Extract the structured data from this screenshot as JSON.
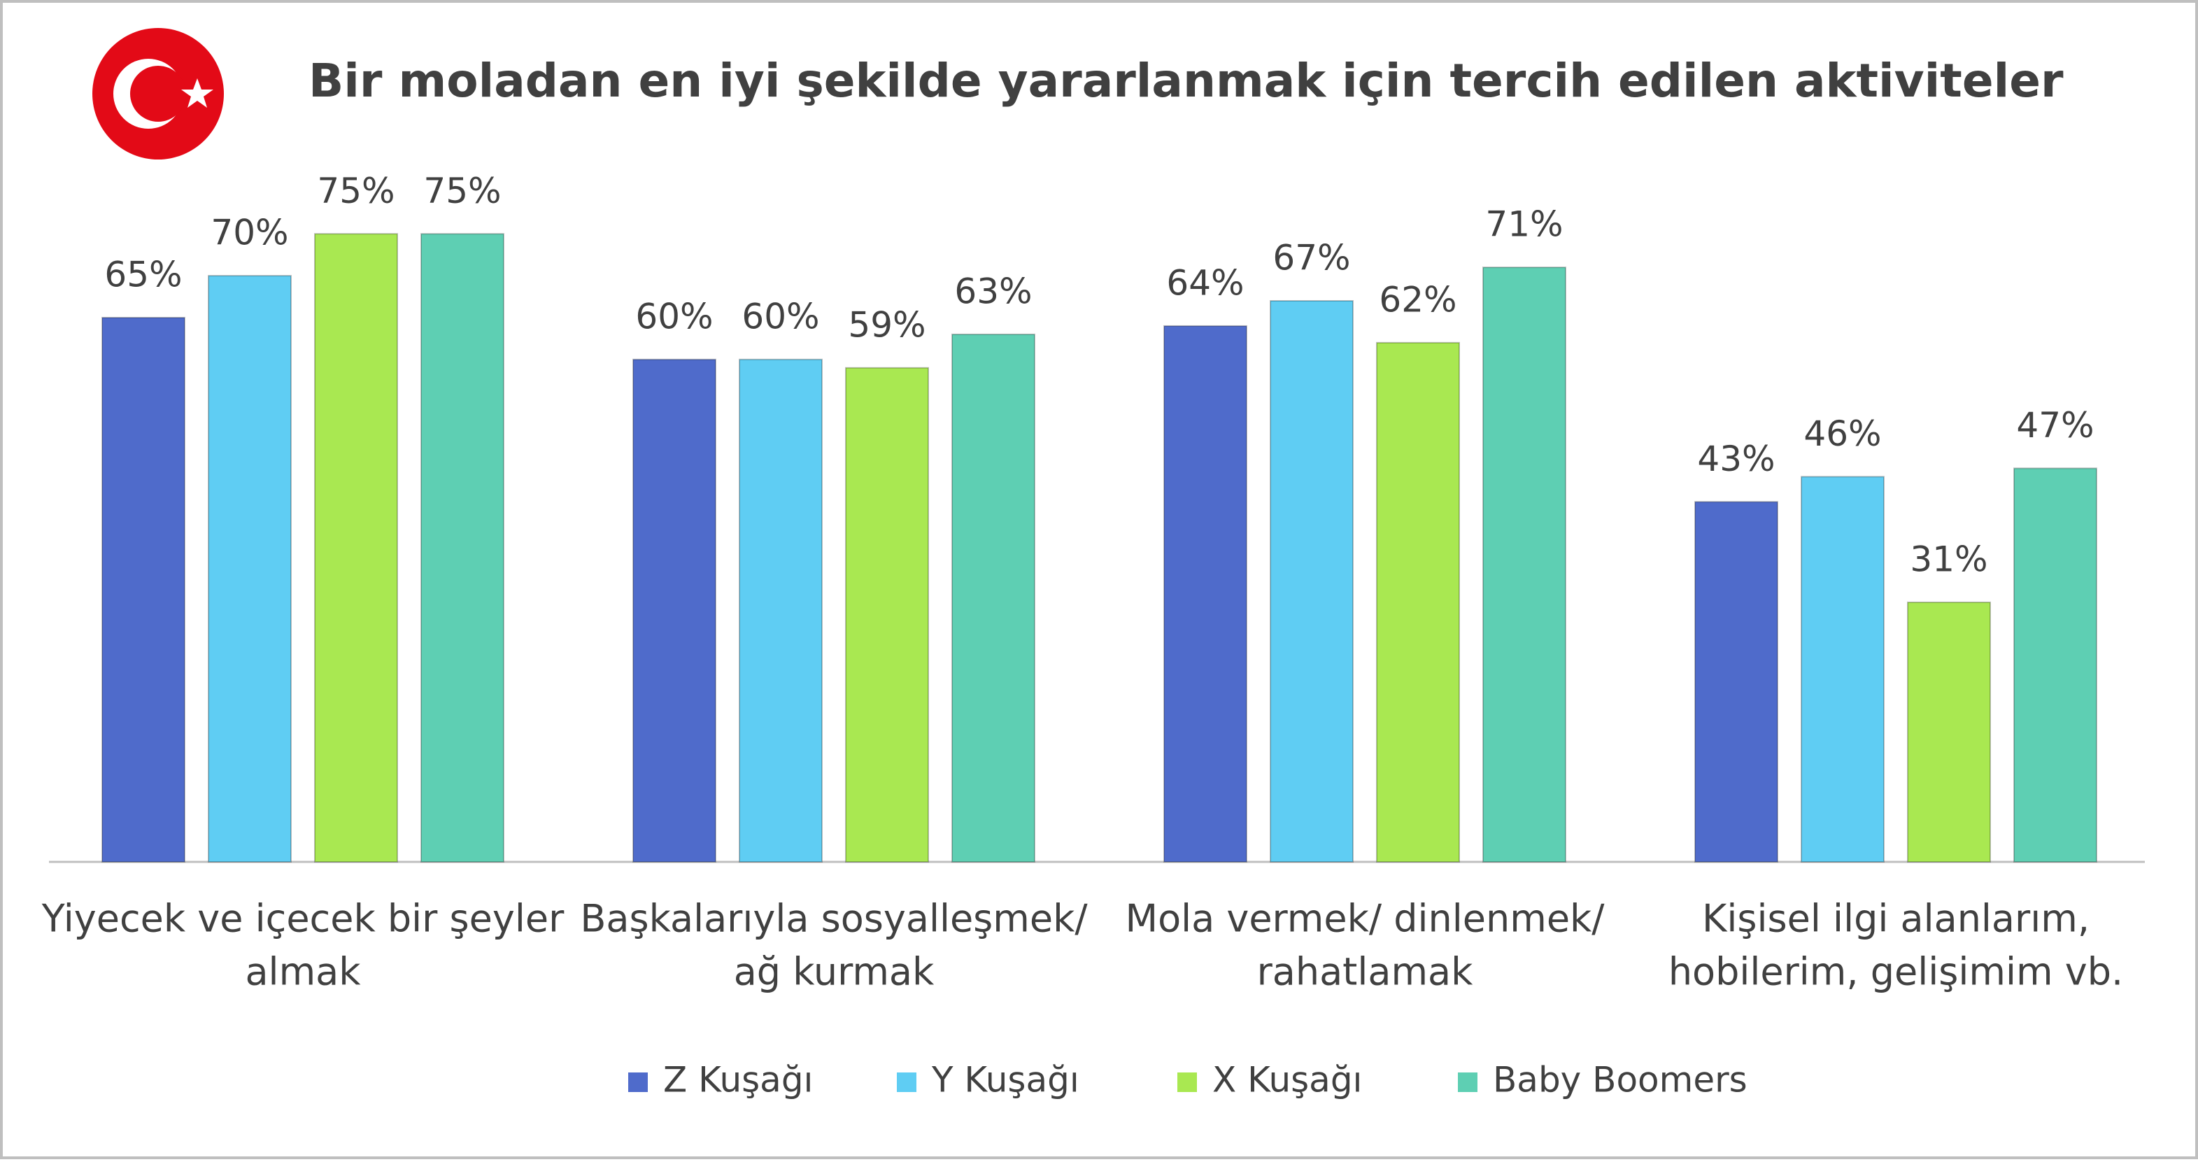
{
  "chart_data": {
    "type": "bar",
    "title": "Bir moladan en iyi şekilde yararlanmak için tercih edilen aktiviteler",
    "categories": [
      [
        "Yiyecek ve içecek bir şeyler",
        "almak"
      ],
      [
        "Başkalarıyla sosyalleşmek/",
        "ağ kurmak"
      ],
      [
        "Mola vermek/ dinlenmek/",
        "rahatlamak"
      ],
      [
        "Kişisel ilgi alanlarım,",
        "hobilerim, gelişimim vb."
      ]
    ],
    "series": [
      {
        "name": "Z Kuşağı",
        "color": "#4f6bcb",
        "values": [
          65,
          60,
          64,
          43
        ],
        "value_labels": [
          "65%",
          "60%",
          "64%",
          "43%"
        ]
      },
      {
        "name": "Y Kuşağı",
        "color": "#5fcdf3",
        "values": [
          70,
          60,
          67,
          46
        ],
        "value_labels": [
          "70%",
          "60%",
          "67%",
          "46%"
        ]
      },
      {
        "name": "X Kuşağı",
        "color": "#a9e851",
        "values": [
          75,
          59,
          62,
          31
        ],
        "value_labels": [
          "75%",
          "59%",
          "62%",
          "31%"
        ]
      },
      {
        "name": "Baby Boomers",
        "color": "#5ecfb3",
        "values": [
          75,
          63,
          71,
          47
        ],
        "value_labels": [
          "75%",
          "63%",
          "71%",
          "47%"
        ]
      }
    ]
  }
}
